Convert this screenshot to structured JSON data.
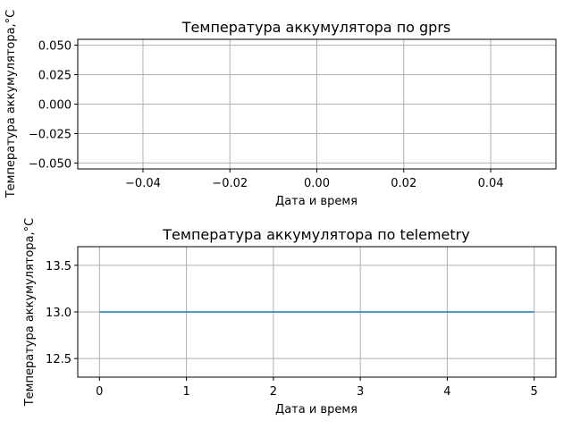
{
  "chart_data": [
    {
      "type": "line",
      "title": "Температура аккумулятора по gprs",
      "xlabel": "Дата и время",
      "ylabel": "Температура аккумулятора,°C",
      "xlim": [
        -0.055,
        0.055
      ],
      "ylim": [
        -0.055,
        0.055
      ],
      "xticks": [
        -0.04,
        -0.02,
        0.0,
        0.02,
        0.04
      ],
      "xtick_labels": [
        "−0.04",
        "−0.02",
        "0.00",
        "0.02",
        "0.04"
      ],
      "yticks": [
        0.05,
        0.025,
        0.0,
        -0.025,
        -0.05
      ],
      "ytick_labels": [
        "0.050",
        "0.025",
        "0.000",
        "−0.025",
        "−0.050"
      ],
      "grid": true,
      "series": []
    },
    {
      "type": "line",
      "title": "Температура аккумулятора по telemetry",
      "xlabel": "Дата и время",
      "ylabel": "Температура аккумулятора,°C",
      "xlim": [
        -0.25,
        5.25
      ],
      "ylim": [
        12.3,
        13.7
      ],
      "xticks": [
        0,
        1,
        2,
        3,
        4,
        5
      ],
      "xtick_labels": [
        "0",
        "1",
        "2",
        "3",
        "4",
        "5"
      ],
      "yticks": [
        13.5,
        13.0,
        12.5
      ],
      "ytick_labels": [
        "13.5",
        "13.0",
        "12.5"
      ],
      "grid": true,
      "series": [
        {
          "color": "#1f77b4",
          "x": [
            0,
            1,
            2,
            3,
            4,
            5
          ],
          "y": [
            13,
            13,
            13,
            13,
            13,
            13
          ]
        }
      ]
    }
  ]
}
